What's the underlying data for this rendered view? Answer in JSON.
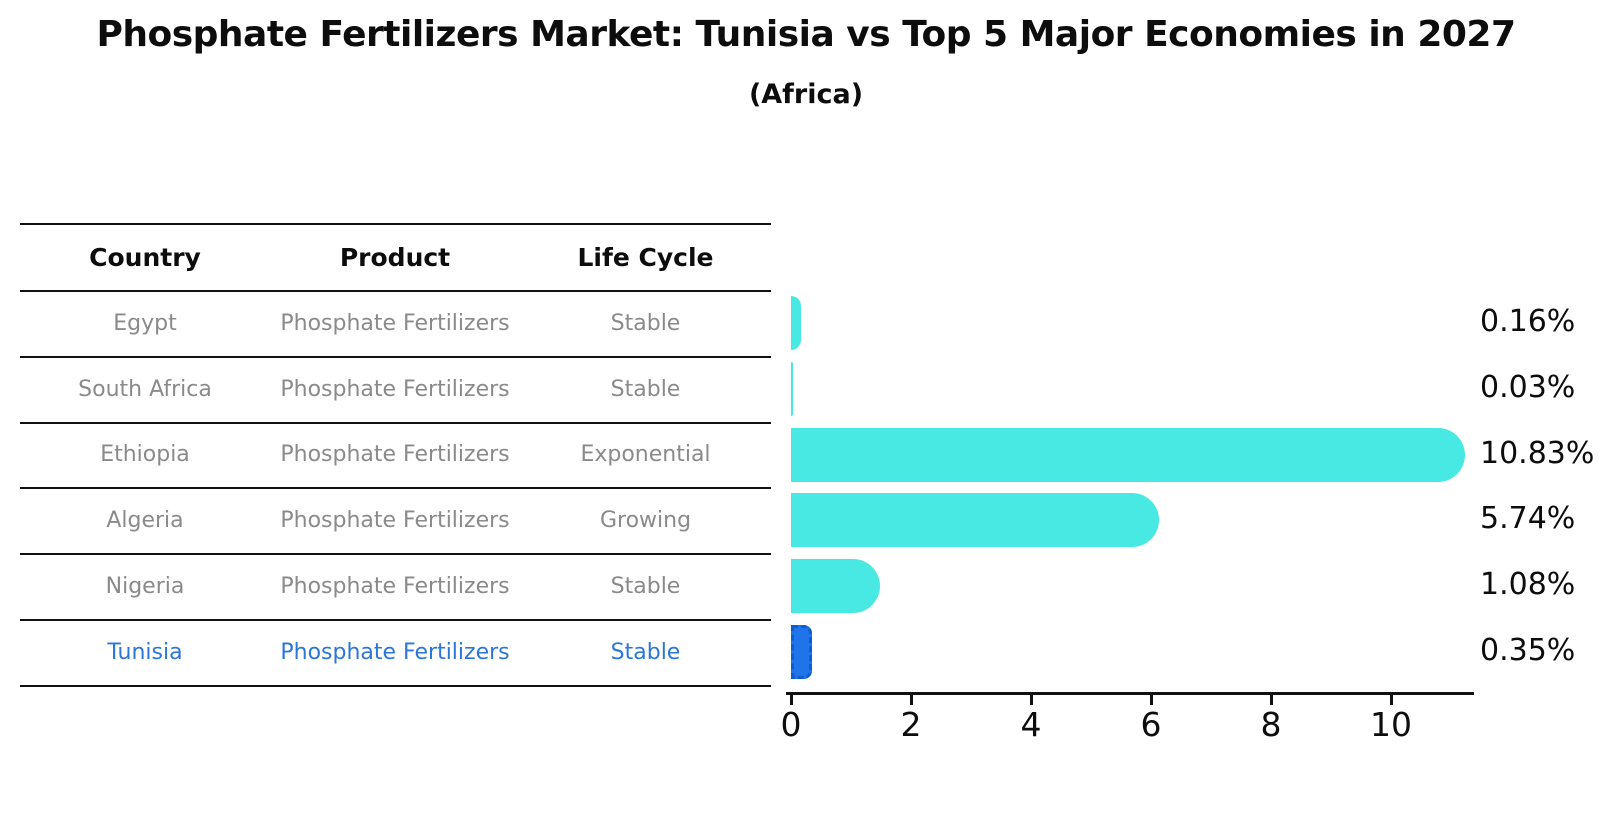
{
  "title": "Phosphate Fertilizers Market: Tunisia vs Top 5 Major Economies in 2027",
  "subtitle": "(Africa)",
  "table": {
    "headers": [
      "Country",
      "Product",
      "Life Cycle"
    ],
    "rows": [
      {
        "country": "Egypt",
        "product": "Phosphate Fertilizers",
        "life_cycle": "Stable",
        "highlight": false
      },
      {
        "country": "South Africa",
        "product": "Phosphate Fertilizers",
        "life_cycle": "Stable",
        "highlight": false
      },
      {
        "country": "Ethiopia",
        "product": "Phosphate Fertilizers",
        "life_cycle": "Exponential",
        "highlight": false
      },
      {
        "country": "Algeria",
        "product": "Phosphate Fertilizers",
        "life_cycle": "Growing",
        "highlight": false
      },
      {
        "country": "Nigeria",
        "product": "Phosphate Fertilizers",
        "life_cycle": "Stable",
        "highlight": false
      },
      {
        "country": "Tunisia",
        "product": "Phosphate Fertilizers",
        "life_cycle": "Stable",
        "highlight": true
      }
    ]
  },
  "chart_data": {
    "type": "bar",
    "orientation": "horizontal",
    "title": "Phosphate Fertilizers Market: Tunisia vs Top 5 Major Economies in 2027",
    "subtitle": "(Africa)",
    "categories": [
      "Egypt",
      "South Africa",
      "Ethiopia",
      "Algeria",
      "Nigeria",
      "Tunisia"
    ],
    "values": [
      0.16,
      0.03,
      10.83,
      5.74,
      1.08,
      0.35
    ],
    "value_labels": [
      "0.16%",
      "0.03%",
      "10.83%",
      "5.74%",
      "1.08%",
      "0.35%"
    ],
    "xlabel": "",
    "ylabel": "",
    "xlim": [
      0,
      11.4
    ],
    "xticks": [
      0,
      2,
      4,
      6,
      8,
      10
    ],
    "grid": false,
    "legend": "none",
    "bar_color": "#48E9E2",
    "highlight_index": 5,
    "highlight_color": "#1E74E8",
    "highlight_border_color": "#0F5CD0",
    "highlight_text_color": "#2B77D9"
  },
  "colors": {
    "text": "#0d0d0d",
    "muted_text": "#8a8a8a",
    "line": "#111111",
    "background": "#ffffff"
  }
}
